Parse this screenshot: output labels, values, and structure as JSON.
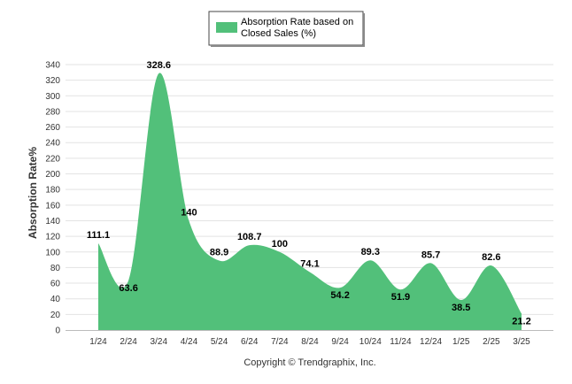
{
  "chart_data": {
    "type": "area",
    "categories": [
      "1/24",
      "2/24",
      "3/24",
      "4/24",
      "5/24",
      "6/24",
      "7/24",
      "8/24",
      "9/24",
      "10/24",
      "11/24",
      "12/24",
      "1/25",
      "2/25",
      "3/25"
    ],
    "series": [
      {
        "name": "Absorption Rate based on Closed Sales (%)",
        "values": [
          111.1,
          63.6,
          328.6,
          140,
          88.9,
          108.7,
          100,
          74.1,
          54.2,
          89.3,
          51.9,
          85.7,
          38.5,
          82.6,
          21.2
        ],
        "color": "#52c07a"
      }
    ],
    "legend_lines": [
      "Absorption Rate based on",
      "Closed Sales (%)"
    ],
    "ylabel": "Absorption Rate%",
    "xlabel": "",
    "ylim": [
      0,
      340
    ],
    "yticks": [
      0,
      20,
      40,
      60,
      80,
      100,
      120,
      140,
      160,
      180,
      200,
      220,
      240,
      260,
      280,
      300,
      320,
      340
    ],
    "grid": true,
    "legend_position": "top-center",
    "data_labels": true
  },
  "footer": {
    "copyright": "Copyright © Trendgraphix, Inc."
  }
}
